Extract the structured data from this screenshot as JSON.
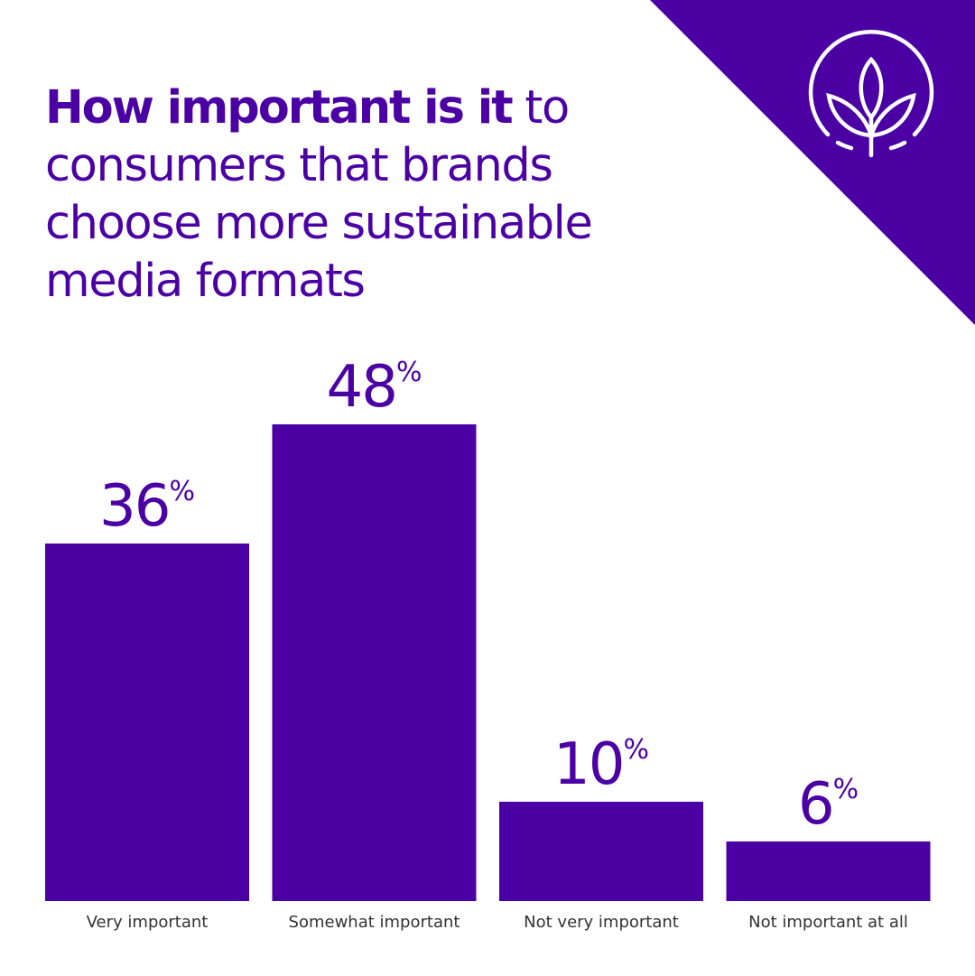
{
  "title": {
    "bold": "How important is it",
    "rest": " to consumers that brands choose more sustainable media formats"
  },
  "colors": {
    "accent": "#4b00a4",
    "label": "#333333",
    "background": "#ffffff"
  },
  "icon": {
    "name": "sustainability-leaf-icon"
  },
  "chart_data": {
    "type": "bar",
    "categories": [
      "Very important",
      "Somewhat important",
      "Not very important",
      "Not important at all"
    ],
    "values": [
      36,
      48,
      10,
      6
    ],
    "value_labels": [
      "36",
      "48",
      "10",
      "6"
    ],
    "value_suffix": "%",
    "ylim": [
      0,
      48
    ],
    "grid": false,
    "legend": "none"
  }
}
